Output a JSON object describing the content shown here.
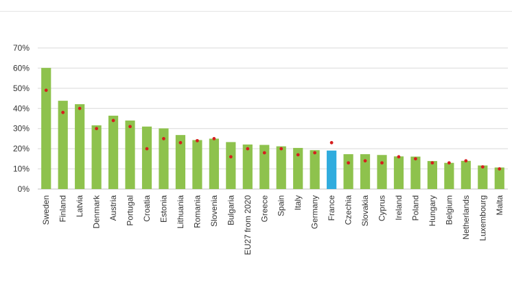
{
  "chart_data": {
    "type": "bar",
    "categories": [
      "Sweden",
      "Finland",
      "Latvia",
      "Denmark",
      "Austria",
      "Portugal",
      "Croatia",
      "Estonia",
      "Lithuania",
      "Romania",
      "Slovenia",
      "Bulgaria",
      "EU27 from 2020",
      "Greece",
      "Spain",
      "Italy",
      "Germany",
      "France",
      "Czechia",
      "Slovakia",
      "Cyprus",
      "Ireland",
      "Poland",
      "Hungary",
      "Belgium",
      "Netherlands",
      "Luxembourg",
      "Malta"
    ],
    "series": [
      {
        "values": [
          60.1,
          43.8,
          42.1,
          31.6,
          36.4,
          34.0,
          31.0,
          30.1,
          26.8,
          24.3,
          25.0,
          23.3,
          22.1,
          21.9,
          21.2,
          20.4,
          19.3,
          19.1,
          17.3,
          17.3,
          16.9,
          16.2,
          16.1,
          13.9,
          13.0,
          14.0,
          11.7,
          10.7
        ],
        "color": "#8ec24d"
      },
      {
        "values": [
          49,
          38,
          40,
          30,
          34,
          31,
          20,
          25,
          23,
          24,
          25,
          16,
          20,
          18,
          20,
          17,
          18,
          23,
          13,
          14,
          13,
          16,
          15,
          13,
          13,
          14,
          11,
          10
        ],
        "color": "#d61f1f"
      }
    ],
    "highlight": {
      "category": "France",
      "color": "#30acde"
    },
    "title": "",
    "xlabel": "",
    "ylabel": "",
    "ylim": [
      0,
      70
    ],
    "yticks": [
      0,
      10,
      20,
      30,
      40,
      50,
      60,
      70
    ],
    "ytick_labels": [
      "0%",
      "10%",
      "20%",
      "30%",
      "40%",
      "50%",
      "60%",
      "70%"
    ],
    "grid": true,
    "legend": "none"
  }
}
